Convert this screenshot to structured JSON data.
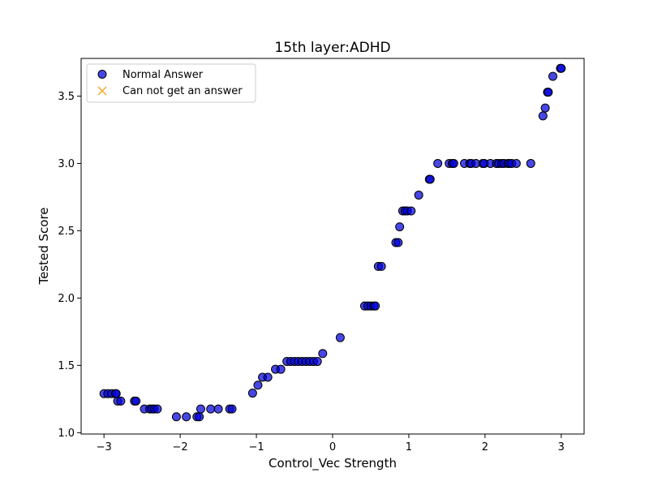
{
  "chart_data": {
    "type": "scatter",
    "title": "15th layer:ADHD",
    "xlabel": "Control_Vec Strength",
    "ylabel": "Tested Score",
    "xlim": [
      -3.3,
      3.3
    ],
    "ylim": [
      0.99,
      3.78
    ],
    "xticks": [
      -3,
      -2,
      -1,
      0,
      1,
      2,
      3
    ],
    "xtick_labels": [
      "−3",
      "−2",
      "−1",
      "0",
      "1",
      "2",
      "3"
    ],
    "yticks": [
      1.0,
      1.5,
      2.0,
      2.5,
      3.0,
      3.5
    ],
    "ytick_labels": [
      "1.0",
      "1.5",
      "2.0",
      "2.5",
      "3.0",
      "3.5"
    ],
    "grid": false,
    "legend_position": "top-left",
    "series": [
      {
        "name": "Normal Answer",
        "marker": "circle",
        "color": "#0000dd",
        "edgecolor": "#000000",
        "points": [
          [
            -3.0,
            1.29
          ],
          [
            -2.95,
            1.29
          ],
          [
            -2.9,
            1.29
          ],
          [
            -2.85,
            1.29
          ],
          [
            -2.84,
            1.29
          ],
          [
            -2.82,
            1.235
          ],
          [
            -2.78,
            1.235
          ],
          [
            -2.6,
            1.235
          ],
          [
            -2.58,
            1.235
          ],
          [
            -2.47,
            1.176
          ],
          [
            -2.4,
            1.176
          ],
          [
            -2.37,
            1.176
          ],
          [
            -2.34,
            1.176
          ],
          [
            -2.3,
            1.176
          ],
          [
            -2.05,
            1.118
          ],
          [
            -1.92,
            1.118
          ],
          [
            -1.78,
            1.118
          ],
          [
            -1.75,
            1.118
          ],
          [
            -1.73,
            1.176
          ],
          [
            -1.6,
            1.176
          ],
          [
            -1.5,
            1.176
          ],
          [
            -1.35,
            1.176
          ],
          [
            -1.32,
            1.176
          ],
          [
            -1.05,
            1.294
          ],
          [
            -0.98,
            1.353
          ],
          [
            -0.92,
            1.412
          ],
          [
            -0.85,
            1.412
          ],
          [
            -0.75,
            1.471
          ],
          [
            -0.68,
            1.471
          ],
          [
            -0.6,
            1.529
          ],
          [
            -0.55,
            1.529
          ],
          [
            -0.5,
            1.529
          ],
          [
            -0.45,
            1.529
          ],
          [
            -0.4,
            1.529
          ],
          [
            -0.35,
            1.529
          ],
          [
            -0.3,
            1.529
          ],
          [
            -0.25,
            1.529
          ],
          [
            -0.2,
            1.529
          ],
          [
            -0.13,
            1.588
          ],
          [
            0.1,
            1.706
          ],
          [
            0.42,
            1.941
          ],
          [
            0.46,
            1.941
          ],
          [
            0.5,
            1.941
          ],
          [
            0.54,
            1.941
          ],
          [
            0.56,
            1.941
          ],
          [
            0.6,
            2.235
          ],
          [
            0.64,
            2.235
          ],
          [
            0.83,
            2.412
          ],
          [
            0.86,
            2.412
          ],
          [
            0.88,
            2.529
          ],
          [
            0.92,
            2.647
          ],
          [
            0.95,
            2.647
          ],
          [
            0.98,
            2.647
          ],
          [
            1.03,
            2.647
          ],
          [
            1.13,
            2.765
          ],
          [
            1.27,
            2.882
          ],
          [
            1.28,
            2.882
          ],
          [
            1.38,
            3.0
          ],
          [
            1.53,
            3.0
          ],
          [
            1.57,
            3.0
          ],
          [
            1.59,
            3.0
          ],
          [
            1.73,
            3.0
          ],
          [
            1.8,
            3.0
          ],
          [
            1.82,
            3.0
          ],
          [
            1.88,
            3.0
          ],
          [
            1.97,
            3.0
          ],
          [
            1.99,
            3.0
          ],
          [
            2.07,
            3.0
          ],
          [
            2.15,
            3.0
          ],
          [
            2.18,
            3.0
          ],
          [
            2.22,
            3.0
          ],
          [
            2.25,
            3.0
          ],
          [
            2.3,
            3.0
          ],
          [
            2.32,
            3.0
          ],
          [
            2.35,
            3.0
          ],
          [
            2.41,
            3.0
          ],
          [
            2.6,
            3.0
          ],
          [
            2.76,
            3.353
          ],
          [
            2.79,
            3.412
          ],
          [
            2.82,
            3.529
          ],
          [
            2.83,
            3.529
          ],
          [
            2.89,
            3.647
          ],
          [
            2.99,
            3.706
          ],
          [
            3.0,
            3.706
          ]
        ]
      },
      {
        "name": "Can not get an answer",
        "marker": "x",
        "color": "#f5b041",
        "points": []
      }
    ]
  }
}
